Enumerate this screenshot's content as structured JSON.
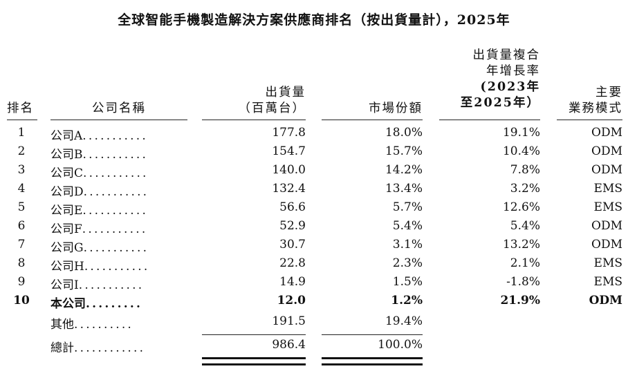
{
  "title": "全球智能手機製造解決方案供應商排名（按出貨量計），2025年",
  "headers": {
    "rank": "排名",
    "company": "公司名稱",
    "shipments_line1": "出貨量",
    "shipments_line2": "（百萬台）",
    "share": "市場份額",
    "cagr_line1": "出貨量複合",
    "cagr_line2": "年增長率",
    "cagr_line3": "(2023年",
    "cagr_line4": "至2025年）",
    "model_line1": "主要",
    "model_line2": "業務模式"
  },
  "rows": [
    {
      "rank": "1",
      "name": "公司A",
      "dots": "...........",
      "shipments": "177.8",
      "share": "18.0%",
      "cagr": "19.1%",
      "model": "ODM"
    },
    {
      "rank": "2",
      "name": "公司B",
      "dots": "...........",
      "shipments": "154.7",
      "share": "15.7%",
      "cagr": "10.4%",
      "model": "ODM"
    },
    {
      "rank": "3",
      "name": "公司C",
      "dots": "...........",
      "shipments": "140.0",
      "share": "14.2%",
      "cagr": "7.8%",
      "model": "ODM"
    },
    {
      "rank": "4",
      "name": "公司D",
      "dots": "...........",
      "shipments": "132.4",
      "share": "13.4%",
      "cagr": "3.2%",
      "model": "EMS"
    },
    {
      "rank": "5",
      "name": "公司E",
      "dots": "...........",
      "shipments": "56.6",
      "share": "5.7%",
      "cagr": "12.6%",
      "model": "EMS"
    },
    {
      "rank": "6",
      "name": "公司F",
      "dots": "...........",
      "shipments": "52.9",
      "share": "5.4%",
      "cagr": "5.4%",
      "model": "ODM"
    },
    {
      "rank": "7",
      "name": "公司G",
      "dots": "...........",
      "shipments": "30.7",
      "share": "3.1%",
      "cagr": "13.2%",
      "model": "ODM"
    },
    {
      "rank": "8",
      "name": "公司H",
      "dots": "...........",
      "shipments": "22.8",
      "share": "2.3%",
      "cagr": "2.1%",
      "model": "EMS"
    },
    {
      "rank": "9",
      "name": "公司I",
      "dots": "...........",
      "shipments": "14.9",
      "share": "1.5%",
      "cagr": "-1.8%",
      "model": "EMS"
    },
    {
      "rank": "10",
      "name": "本公司",
      "dots": ".........",
      "shipments": "12.0",
      "share": "1.2%",
      "cagr": "21.9%",
      "model": "ODM"
    }
  ],
  "others": {
    "name": "其他",
    "dots": "..........",
    "shipments": "191.5",
    "share": "19.4%"
  },
  "total": {
    "name": "總計",
    "dots": "............",
    "shipments": "986.4",
    "share": "100.0%"
  }
}
